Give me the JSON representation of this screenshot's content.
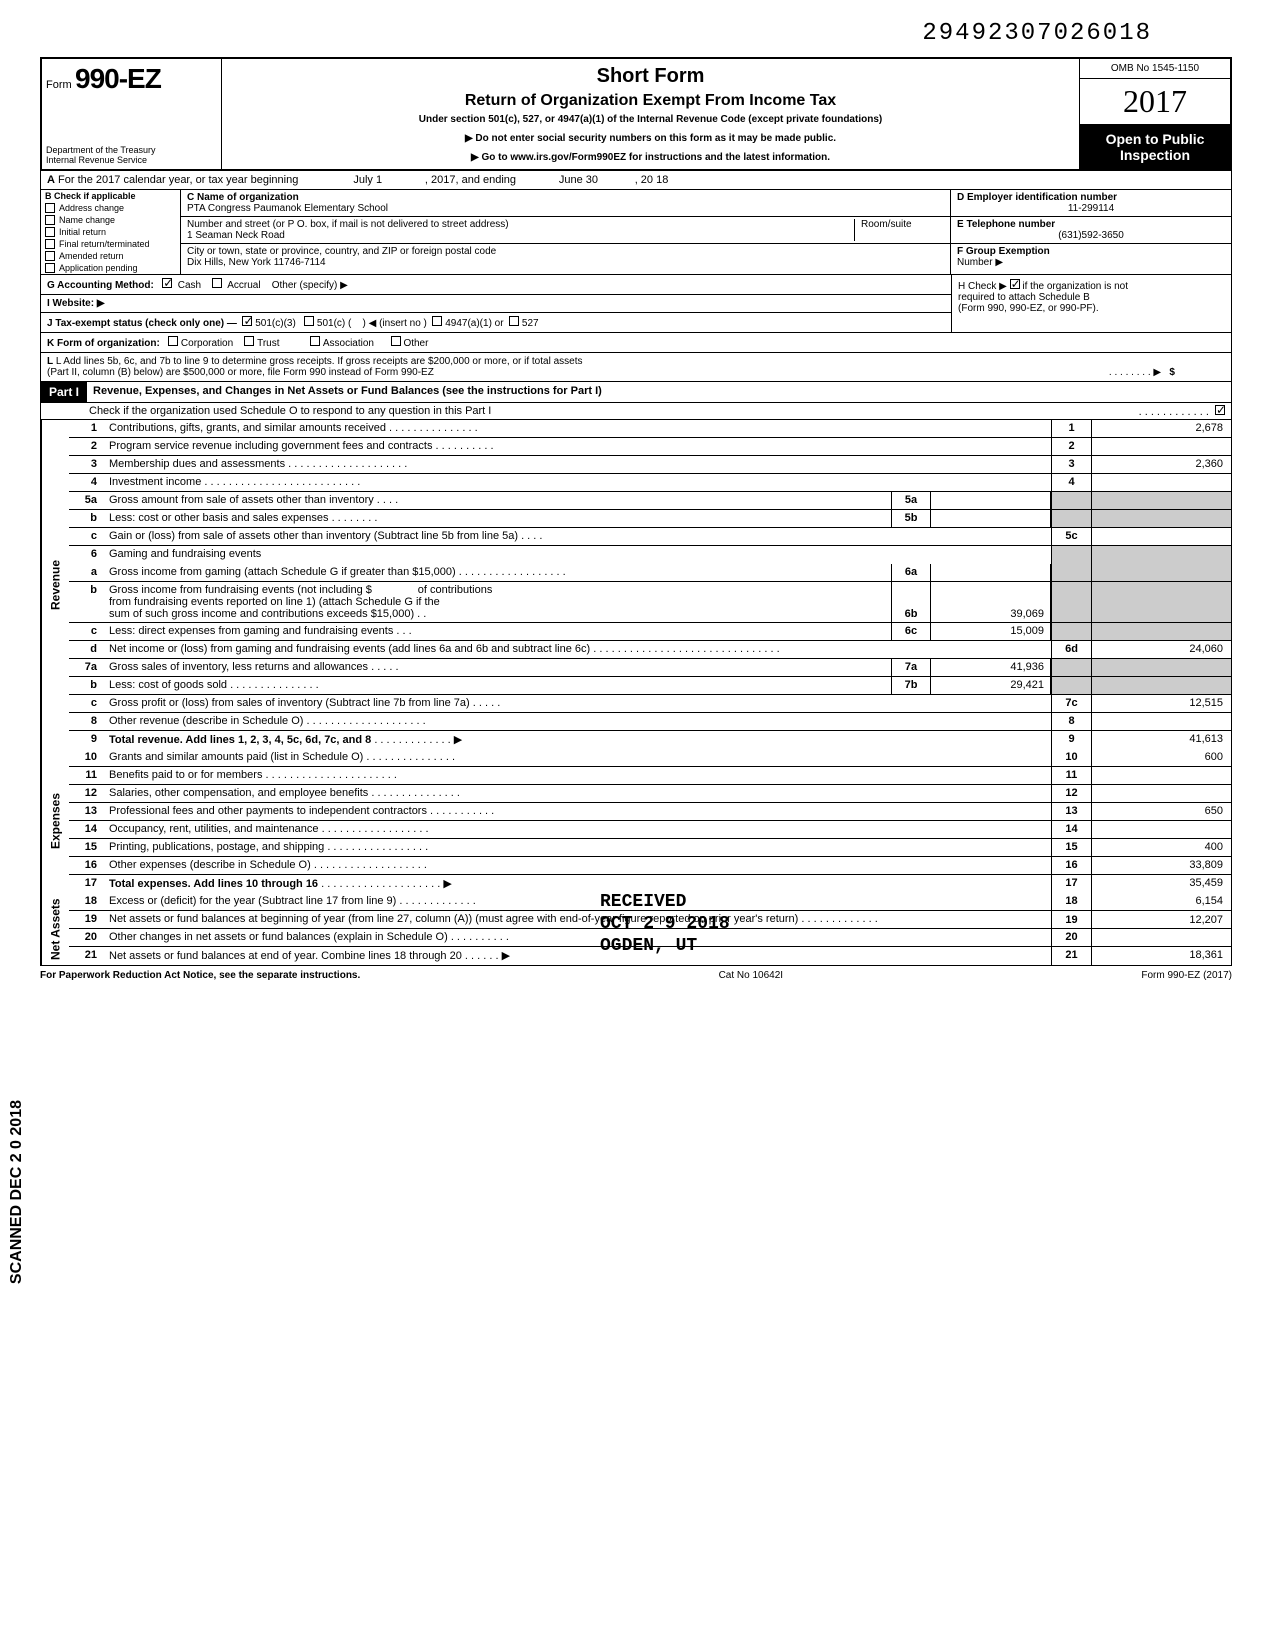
{
  "top_number": "29492307026018",
  "header": {
    "form_label": "Form",
    "form_no": "990-EZ",
    "dept1": "Department of the Treasury",
    "dept2": "Internal Revenue Service",
    "short_form": "Short Form",
    "return_title": "Return of Organization Exempt From Income Tax",
    "under_section": "Under section 501(c), 527, or 4947(a)(1) of the Internal Revenue Code (except private foundations)",
    "arrow1": "▶ Do not enter social security numbers on this form as it may be made public.",
    "arrow2": "▶ Go to www.irs.gov/Form990EZ for instructions and the latest information.",
    "omb": "OMB No 1545-1150",
    "year": "2017",
    "open1": "Open to Public",
    "open2": "Inspection"
  },
  "rowA": {
    "label_a": "A",
    "text1": "For the 2017 calendar year, or tax year beginning",
    "begin_val": "July 1",
    "text2": ", 2017, and ending",
    "end_val": "June 30",
    "text3": ", 20",
    "end_year": "18"
  },
  "colB": {
    "header": "B Check if applicable",
    "items": [
      "Address change",
      "Name change",
      "Initial return",
      "Final return/terminated",
      "Amended return",
      "Application pending"
    ]
  },
  "colC": {
    "label": "C Name of organization",
    "org": "PTA Congress Paumanok Elementary School",
    "addr_label": "Number and street (or P O. box, if mail is not delivered to street address)",
    "addr": "1 Seaman Neck Road",
    "room_label": "Room/suite",
    "city_label": "City or town, state or province, country, and ZIP or foreign postal code",
    "city": "Dix Hills, New York 11746-7114"
  },
  "colD": {
    "label": "D Employer identification number",
    "ein": "11-299114"
  },
  "colE": {
    "label": "E Telephone number",
    "phone": "(631)592-3650"
  },
  "colF": {
    "label": "F Group Exemption",
    "label2": "Number ▶"
  },
  "rowG": {
    "label": "G Accounting Method:",
    "cash": "Cash",
    "accrual": "Accrual",
    "other": "Other (specify) ▶"
  },
  "rowH": {
    "text1": "H Check ▶",
    "text2": "if the organization is not",
    "text3": "required to attach Schedule B",
    "text4": "(Form 990, 990-EZ, or 990-PF)."
  },
  "rowI": {
    "label": "I  Website: ▶"
  },
  "rowJ": {
    "label": "J Tax-exempt status (check only one) —",
    "opt1": "501(c)(3)",
    "opt2": "501(c) (",
    "opt2b": ") ◀ (insert no )",
    "opt3": "4947(a)(1) or",
    "opt4": "527"
  },
  "rowK": {
    "label": "K Form of organization:",
    "opts": [
      "Corporation",
      "Trust",
      "Association",
      "Other"
    ]
  },
  "rowL": {
    "text1": "L Add lines 5b, 6c, and 7b to line 9 to determine gross receipts. If gross receipts are $200,000 or more, or if total assets",
    "text2": "(Part II, column (B) below) are $500,000 or more, file Form 990 instead of Form 990-EZ",
    "arrow": "▶",
    "dollar": "$"
  },
  "part1": {
    "label": "Part I",
    "title": "Revenue, Expenses, and Changes in Net Assets or Fund Balances (see the instructions for Part I)",
    "check_o": "Check if the organization used Schedule O to respond to any question in this Part I"
  },
  "sideLabels": {
    "revenue": "Revenue",
    "expenses": "Expenses",
    "netassets": "Net Assets"
  },
  "lines": {
    "1": {
      "num": "1",
      "desc": "Contributions, gifts, grants, and similar amounts received",
      "rnum": "1",
      "rval": "2,678"
    },
    "2": {
      "num": "2",
      "desc": "Program service revenue including government fees and contracts",
      "rnum": "2",
      "rval": ""
    },
    "3": {
      "num": "3",
      "desc": "Membership dues and assessments",
      "rnum": "3",
      "rval": "2,360"
    },
    "4": {
      "num": "4",
      "desc": "Investment income",
      "rnum": "4",
      "rval": ""
    },
    "5a": {
      "num": "5a",
      "desc": "Gross amount from sale of assets other than inventory",
      "inum": "5a",
      "ival": ""
    },
    "5b": {
      "num": "b",
      "desc": "Less: cost or other basis and sales expenses",
      "inum": "5b",
      "ival": ""
    },
    "5c": {
      "num": "c",
      "desc": "Gain or (loss) from sale of assets other than inventory (Subtract line 5b from line 5a)",
      "rnum": "5c",
      "rval": ""
    },
    "6": {
      "num": "6",
      "desc": "Gaming and fundraising events"
    },
    "6a": {
      "num": "a",
      "desc": "Gross income from gaming (attach Schedule G if greater than $15,000)",
      "inum": "6a",
      "ival": ""
    },
    "6b": {
      "num": "b",
      "desc1": "Gross income from fundraising events (not including  $",
      "desc2": "of contributions",
      "desc3": "from fundraising events reported on line 1) (attach Schedule G if the",
      "desc4": "sum of such gross income and contributions exceeds $15,000)",
      "inum": "6b",
      "ival": "39,069"
    },
    "6c": {
      "num": "c",
      "desc": "Less: direct expenses from gaming and fundraising events",
      "inum": "6c",
      "ival": "15,009"
    },
    "6d": {
      "num": "d",
      "desc": "Net income or (loss) from gaming and fundraising events (add lines 6a and 6b and subtract line 6c)",
      "rnum": "6d",
      "rval": "24,060"
    },
    "7a": {
      "num": "7a",
      "desc": "Gross sales of inventory, less returns and allowances",
      "inum": "7a",
      "ival": "41,936"
    },
    "7b": {
      "num": "b",
      "desc": "Less: cost of goods sold",
      "inum": "7b",
      "ival": "29,421"
    },
    "7c": {
      "num": "c",
      "desc": "Gross profit or (loss) from sales of inventory (Subtract line 7b from line 7a)",
      "rnum": "7c",
      "rval": "12,515"
    },
    "8": {
      "num": "8",
      "desc": "Other revenue (describe in Schedule O)",
      "rnum": "8",
      "rval": ""
    },
    "9": {
      "num": "9",
      "desc": "Total revenue. Add lines 1, 2, 3, 4, 5c, 6d, 7c, and 8",
      "arrow": "▶",
      "rnum": "9",
      "rval": "41,613"
    },
    "10": {
      "num": "10",
      "desc": "Grants and similar amounts paid (list in Schedule O)",
      "rnum": "10",
      "rval": "600"
    },
    "11": {
      "num": "11",
      "desc": "Benefits paid to or for members",
      "rnum": "11",
      "rval": ""
    },
    "12": {
      "num": "12",
      "desc": "Salaries, other compensation, and employee benefits",
      "rnum": "12",
      "rval": ""
    },
    "13": {
      "num": "13",
      "desc": "Professional fees and other payments to independent contractors",
      "rnum": "13",
      "rval": "650"
    },
    "14": {
      "num": "14",
      "desc": "Occupancy, rent, utilities, and maintenance",
      "rnum": "14",
      "rval": ""
    },
    "15": {
      "num": "15",
      "desc": "Printing, publications, postage, and shipping",
      "rnum": "15",
      "rval": "400"
    },
    "16": {
      "num": "16",
      "desc": "Other expenses (describe in Schedule O)",
      "rnum": "16",
      "rval": "33,809"
    },
    "17": {
      "num": "17",
      "desc": "Total expenses. Add lines 10 through 16",
      "arrow": "▶",
      "rnum": "17",
      "rval": "35,459"
    },
    "18": {
      "num": "18",
      "desc": "Excess or (deficit) for the year (Subtract line 17 from line 9)",
      "rnum": "18",
      "rval": "6,154"
    },
    "19": {
      "num": "19",
      "desc": "Net assets or fund balances at beginning of year (from line 27, column (A)) (must agree with end-of-year figure reported on prior year's return)",
      "rnum": "19",
      "rval": "12,207"
    },
    "20": {
      "num": "20",
      "desc": "Other changes in net assets or fund balances (explain in Schedule O)",
      "rnum": "20",
      "rval": ""
    },
    "21": {
      "num": "21",
      "desc": "Net assets or fund balances at end of year. Combine lines 18 through 20",
      "arrow": "▶",
      "rnum": "21",
      "rval": "18,361"
    }
  },
  "footer": {
    "paperwork": "For Paperwork Reduction Act Notice, see the separate instructions.",
    "cat": "Cat No 10642I",
    "form": "Form 990-EZ (2017)"
  },
  "stamp": {
    "received": "RECEIVED",
    "date": "OCT 2 9 2018",
    "ogden": "OGDEN, UT"
  },
  "scanned": "SCANNED DEC 2 0 2018"
}
